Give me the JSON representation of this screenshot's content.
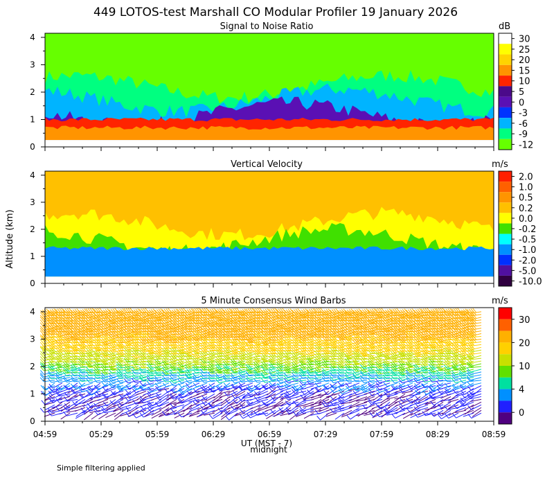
{
  "title": "449 LOTOS-test Marshall CO Modular Profiler 19 January 2026",
  "ylabel": "Altitude (km)",
  "xlabel": "UT (MST - 7)",
  "midnight_label": "midnight",
  "footer": "Simple filtering applied",
  "colors": {
    "frame": "#000000",
    "background": "#ffffff"
  },
  "chart_data": [
    {
      "type": "heatmap",
      "title": "Signal to Noise Ratio",
      "unit": "dB",
      "x_ticks": [
        "04:59",
        "05:29",
        "05:59",
        "06:29",
        "06:59",
        "07:29",
        "07:59",
        "08:29",
        "08:59"
      ],
      "y_ticks": [
        "0",
        "1",
        "2",
        "3",
        "4"
      ],
      "ylim": [
        0,
        4.15
      ],
      "colorbar": {
        "labels": [
          "30",
          "25",
          "20",
          "15",
          "10",
          "5",
          "0",
          "-3",
          "-6",
          "-9",
          "-12"
        ],
        "colors": [
          "#ffffff",
          "#ffff00",
          "#ffd400",
          "#ff9400",
          "#ff2400",
          "#4b0a8a",
          "#5a10b4",
          "#0033ff",
          "#00b4ff",
          "#00ff80",
          "#66ff00"
        ]
      },
      "layers": [
        {
          "level": "-12 to -9",
          "bottom_km": 2.6,
          "color": "#66ff00"
        },
        {
          "level": "-9 to -6",
          "bottom_km": 2.2,
          "color": "#00ff80"
        },
        {
          "level": "-6 to -3",
          "bottom_km": 1.7,
          "color": "#00b4ff"
        },
        {
          "level": "0 to 5",
          "bottom_km": 1.2,
          "color": "#5a10b4"
        },
        {
          "level": "10 to 15",
          "bottom_km": 0.25,
          "top_km": 1.0,
          "color": "#ff2400"
        },
        {
          "level": "15 to 20",
          "bottom_km": 0.25,
          "top_km": 0.7,
          "color": "#ff9400"
        }
      ]
    },
    {
      "type": "heatmap",
      "title": "Vertical Velocity",
      "unit": "m/s",
      "x_ticks": [
        "04:59",
        "05:29",
        "05:59",
        "06:29",
        "06:59",
        "07:29",
        "07:59",
        "08:29",
        "08:59"
      ],
      "y_ticks": [
        "0",
        "1",
        "2",
        "3",
        "4"
      ],
      "ylim": [
        0,
        4.15
      ],
      "colorbar": {
        "labels": [
          "2.0",
          "1.0",
          "0.5",
          "0.2",
          "0.0",
          "-0.2",
          "-0.5",
          "-1.0",
          "-2.0",
          "-5.0",
          "-10.0"
        ],
        "colors": [
          "#ff2000",
          "#ff6000",
          "#ff9400",
          "#ffc000",
          "#ffff00",
          "#40e000",
          "#00ffff",
          "#0090ff",
          "#0030ff",
          "#5010a0",
          "#300040"
        ]
      },
      "layers": [
        {
          "level": "0.2 to 0.5",
          "bottom_km": 2.8,
          "color": "#ffc000"
        },
        {
          "level": "0.0 to 0.2",
          "bottom_km": 2.2,
          "color": "#ffff00"
        },
        {
          "level": "-0.2 to 0.0",
          "bottom_km": 1.6,
          "color": "#40e000"
        },
        {
          "level": "-0.5 to -0.2",
          "bottom_km": 0.25,
          "color": "#00ffff"
        },
        {
          "level": "-1.0 to -0.5",
          "bottom_km": 0.5,
          "top_km": 1.3,
          "color": "#0090ff"
        }
      ]
    },
    {
      "type": "scatter",
      "title": "5 Minute Consensus Wind Barbs",
      "unit": "m/s",
      "x_ticks": [
        "04:59",
        "05:29",
        "05:59",
        "06:29",
        "06:59",
        "07:29",
        "07:59",
        "08:29",
        "08:59"
      ],
      "y_ticks": [
        "0",
        "1",
        "2",
        "3",
        "4"
      ],
      "ylim": [
        0,
        4.15
      ],
      "colorbar": {
        "labels": [
          "30",
          "20",
          "10",
          "4",
          "0"
        ],
        "colors": [
          "#ff0000",
          "#ff6000",
          "#ffb000",
          "#ffd000",
          "#c8e000",
          "#60e000",
          "#00e0a0",
          "#0090ff",
          "#2020ff",
          "#500080"
        ]
      },
      "speed_profile": [
        {
          "alt_km": 0.3,
          "speed": 2
        },
        {
          "alt_km": 1.0,
          "speed": 2
        },
        {
          "alt_km": 1.5,
          "speed": 5
        },
        {
          "alt_km": 1.9,
          "speed": 8
        },
        {
          "alt_km": 2.3,
          "speed": 12
        },
        {
          "alt_km": 3.0,
          "speed": 18
        },
        {
          "alt_km": 3.8,
          "speed": 22
        }
      ]
    }
  ]
}
